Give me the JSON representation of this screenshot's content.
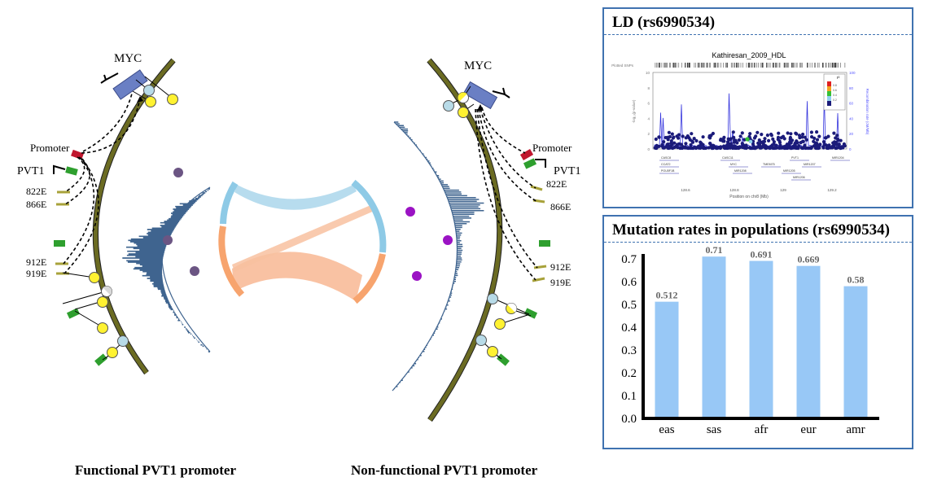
{
  "left_panel": {
    "caption": "Functional PVT1 promoter",
    "labels": {
      "myc": "MYC",
      "promoter": "Promoter",
      "pvt1": "PVT1",
      "e822": "822E",
      "e866": "866E",
      "e912": "912E",
      "e919": "919E"
    }
  },
  "right_panel": {
    "caption": "Non-functional PVT1 promoter",
    "labels": {
      "myc": "MYC",
      "promoter": "Promoter",
      "pvt1": "PVT1",
      "e822": "822E",
      "e866": "866E",
      "e912": "912E",
      "e919": "919E"
    }
  },
  "colors": {
    "ring": "#6b6b22",
    "myc_box": "#6a7fc4",
    "promoter": "#c0172e",
    "green_marker": "#2e9f2e",
    "enhancer": "#a8a23a",
    "histogram": "#3f648f",
    "dot_left": "#6b5583",
    "dot_right": "#9b13c4",
    "chord_blue": "#9fcfe6",
    "chord_orange": "#f7b28a",
    "panel_border": "#3f72b0",
    "bar": "#98c8f6"
  },
  "ld_panel": {
    "title": "LD (rs6990534)",
    "plot_title": "Kathiresan_2009_HDL",
    "plotted_snps": "Plotted SNPs",
    "y_ticks": [
      "10",
      "8",
      "6",
      "4",
      "2",
      "0"
    ],
    "y_label": "-log₁₀(p-value)",
    "y2_ticks": [
      "100",
      "80",
      "60",
      "40",
      "20",
      "0"
    ],
    "y2_label": "Recombination rate (cM/Mb)",
    "x_ticks": [
      "128.6",
      "128.8",
      "129",
      "129.2"
    ],
    "x_label": "Position on chr8 (Mb)",
    "legend_title": "r²",
    "legend_items": [
      "0.8",
      "0.6",
      "0.4",
      "0.2"
    ],
    "genes": [
      "CASC8",
      "CASC11",
      "PVT1",
      "MIR1204",
      "CCAT2",
      "MYC",
      "TMEM75",
      "MIR1207",
      "POU5F1B",
      "MIR1208",
      "MIR1205",
      "MIR1206"
    ]
  },
  "bar_panel": {
    "title": "Mutation rates in populations (rs6990534)"
  },
  "chart_data": {
    "type": "bar",
    "title": "Mutation rates in populations (rs6990534)",
    "categories": [
      "eas",
      "sas",
      "afr",
      "eur",
      "amr"
    ],
    "values": [
      0.512,
      0.71,
      0.691,
      0.669,
      0.58
    ],
    "value_labels": [
      "0.512",
      "0.71",
      "0.691",
      "0.669",
      "0.58"
    ],
    "y_ticks": [
      "0.0",
      "0.1",
      "0.2",
      "0.3",
      "0.4",
      "0.5",
      "0.6",
      "0.7"
    ],
    "ylim": [
      0,
      0.7
    ],
    "xlabel": "",
    "ylabel": "",
    "grid": false,
    "color": "#98c8f6"
  }
}
